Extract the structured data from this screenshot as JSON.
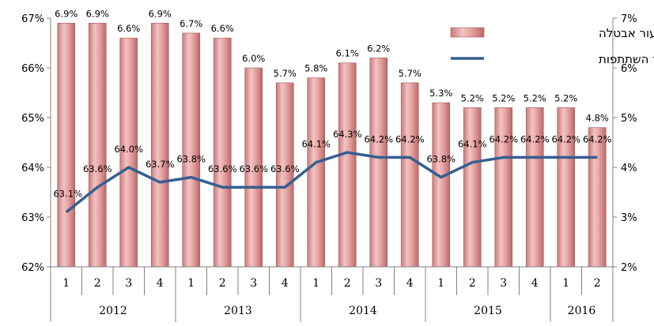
{
  "chart_data": {
    "type": "bar",
    "categories": [
      "1",
      "2",
      "3",
      "4",
      "1",
      "2",
      "3",
      "4",
      "1",
      "2",
      "3",
      "4",
      "1",
      "2",
      "3",
      "4",
      "1",
      "2"
    ],
    "groups": [
      {
        "label": "2012",
        "count": 4
      },
      {
        "label": "2013",
        "count": 4
      },
      {
        "label": "2014",
        "count": 4
      },
      {
        "label": "2015",
        "count": 4
      },
      {
        "label": "2016",
        "count": 2
      }
    ],
    "series": [
      {
        "name": "שיעור אבטלה",
        "type": "bar",
        "axis": "right",
        "color": "#e8a3a3",
        "values": [
          6.9,
          6.9,
          6.6,
          6.9,
          6.7,
          6.6,
          6.0,
          5.7,
          5.8,
          6.1,
          6.2,
          5.7,
          5.3,
          5.2,
          5.2,
          5.2,
          5.2,
          4.8
        ],
        "labels": [
          "6.9%",
          "6.9%",
          "6.6%",
          "6.9%",
          "6.7%",
          "6.6%",
          "6.0%",
          "5.7%",
          "5.8%",
          "6.1%",
          "6.2%",
          "5.7%",
          "5.3%",
          "5.2%",
          "5.2%",
          "5.2%",
          "5.2%",
          "4.8%"
        ]
      },
      {
        "name": "שיעור השתתפות",
        "type": "line",
        "axis": "left",
        "color": "#365f91",
        "values": [
          63.1,
          63.6,
          64.0,
          63.7,
          63.8,
          63.6,
          63.6,
          63.6,
          64.1,
          64.3,
          64.2,
          64.2,
          63.8,
          64.1,
          64.2,
          64.2,
          64.2,
          64.2
        ],
        "labels": [
          "63.1%",
          "63.6%",
          "64.0%",
          "63.7%",
          "63.8%",
          "63.6%",
          "63.6%",
          "63.6%",
          "64.1%",
          "64.3%",
          "64.2%",
          "64.2%",
          "63.8%",
          "64.1%",
          "64.2%",
          "64.2%",
          "64.2%",
          "64.2%"
        ]
      }
    ],
    "y_left": {
      "min": 62,
      "max": 67,
      "ticks": [
        "62%",
        "63%",
        "64%",
        "65%",
        "66%",
        "67%"
      ]
    },
    "y_right": {
      "min": 2,
      "max": 7,
      "ticks": [
        "2%",
        "3%",
        "4%",
        "5%",
        "6%",
        "7%"
      ]
    },
    "legend": {
      "position": "top-right"
    }
  }
}
